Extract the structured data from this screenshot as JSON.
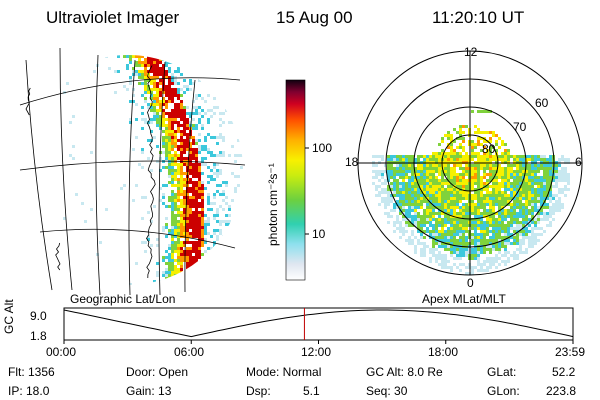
{
  "header": {
    "instrument": "Ultraviolet Imager",
    "date": "15 Aug 00",
    "time": "11:20:10 UT"
  },
  "colorbar": {
    "unit_label": "photon cm⁻²s⁻¹",
    "ticks": [
      "100",
      "10"
    ],
    "scale": "log"
  },
  "geo_panel": {
    "caption": "Geographic Lat/Lon"
  },
  "polar_panel": {
    "caption": "Apex MLat/MLT",
    "mlt_labels": [
      "12",
      "18",
      "6",
      "0"
    ],
    "lat_labels": [
      "60",
      "70",
      "80"
    ]
  },
  "timeline": {
    "axis_label": "GC Alt",
    "y_ticks": [
      "9.0",
      "1.8"
    ],
    "x_ticks": [
      "00:00",
      "06:00",
      "12:00",
      "18:00",
      "23:59"
    ],
    "marker_color": "#c00000"
  },
  "status": {
    "flt": "Flt: 1356",
    "ip": "IP: 18.0",
    "door": "Door: Open",
    "gain": "Gain: 13",
    "mode": "Mode: Normal",
    "dsp_label": "Dsp:",
    "dsp_value": "5.1",
    "gc_alt": "GC Alt: 8.0 Re",
    "seq": "Seq: 30",
    "glat_label": "GLat:",
    "glat_value": "52.2",
    "glon_label": "GLon:",
    "glon_value": "223.8"
  },
  "colors": {
    "red": "#cc0000",
    "orange": "#ff9a00",
    "yellow": "#f5f000",
    "green": "#7fd23c",
    "cyan": "#3cc8dc",
    "pale": "#c8e8f0"
  }
}
